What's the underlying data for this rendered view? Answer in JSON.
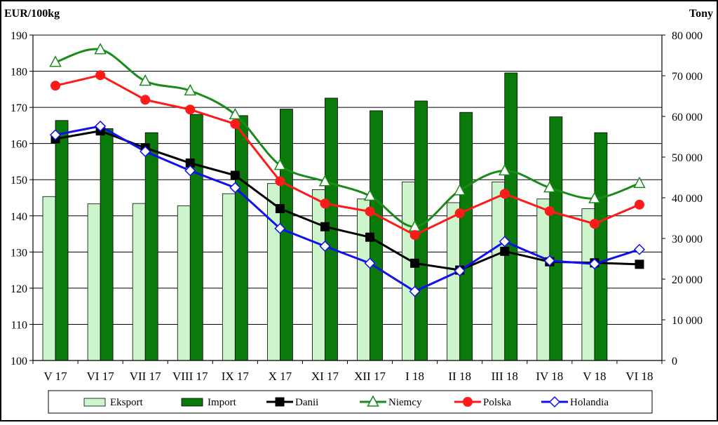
{
  "chart_data": {
    "type": "bar",
    "left_axis_title": "EUR/100kg",
    "right_axis_title": "Tony",
    "categories": [
      "V 17",
      "VI 17",
      "VII 17",
      "VIII 17",
      "IX 17",
      "X 17",
      "XI 17",
      "XII 17",
      "I 18",
      "II 18",
      "III 18",
      "IV 18",
      "V 18",
      "VI 18"
    ],
    "left_axis": {
      "min": 100,
      "max": 190,
      "step": 10,
      "ticks": [
        "100",
        "110",
        "120",
        "130",
        "140",
        "150",
        "160",
        "170",
        "180",
        "190"
      ]
    },
    "right_axis": {
      "min": 0,
      "max": 80000,
      "step": 10000,
      "ticks": [
        "0",
        "10 000",
        "20 000",
        "30 000",
        "40 000",
        "50 000",
        "60 000",
        "70 000",
        "80 000"
      ]
    },
    "grid": true,
    "legend_position": "bottom",
    "bar_series": [
      {
        "name": "Eksport",
        "axis": "right",
        "color": "#ccf5cc",
        "values": [
          40300,
          38500,
          38600,
          38000,
          41000,
          43500,
          42000,
          39700,
          43900,
          38800,
          43900,
          39700,
          37300,
          null
        ]
      },
      {
        "name": "Import",
        "axis": "right",
        "color": "#0a7a0a",
        "values": [
          59000,
          57000,
          56000,
          60500,
          60200,
          61800,
          64500,
          61400,
          63800,
          61000,
          70700,
          59900,
          56000,
          null
        ]
      }
    ],
    "line_series": [
      {
        "name": "Danii",
        "axis": "left",
        "color": "#000000",
        "marker": "square",
        "smooth": false,
        "values": [
          161.3,
          163.5,
          158.8,
          154.6,
          151.2,
          142.0,
          137.0,
          134.1,
          126.9,
          125.0,
          130.2,
          127.3,
          127.0,
          126.6
        ]
      },
      {
        "name": "Niemcy",
        "axis": "left",
        "color": "#1a8a1a",
        "marker": "triangle",
        "smooth": true,
        "values": [
          182.5,
          186.0,
          177.3,
          174.6,
          168.0,
          154.0,
          149.5,
          145.5,
          137.0,
          147.0,
          152.5,
          147.8,
          144.8,
          149.0
        ]
      },
      {
        "name": "Polska",
        "axis": "left",
        "color": "#ff1a1a",
        "marker": "circle",
        "smooth": false,
        "values": [
          176.0,
          178.9,
          172.1,
          169.4,
          165.4,
          149.6,
          143.4,
          141.2,
          134.7,
          140.7,
          146.1,
          141.3,
          137.8,
          143.1
        ]
      },
      {
        "name": "Holandia",
        "axis": "left",
        "color": "#1010ee",
        "marker": "diamond",
        "smooth": false,
        "values": [
          162.4,
          164.8,
          157.8,
          152.5,
          147.8,
          136.5,
          131.6,
          126.9,
          119.1,
          124.8,
          132.9,
          127.6,
          126.7,
          130.7
        ]
      }
    ]
  }
}
